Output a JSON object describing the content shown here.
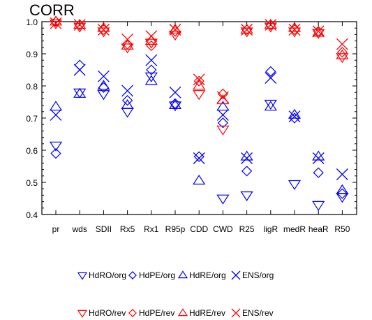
{
  "chart_data": {
    "type": "scatter",
    "title": "CORR",
    "ylim": [
      0.4,
      1.0
    ],
    "yticks": [
      "0.4",
      "0.5",
      "0.6",
      "0.7",
      "0.8",
      "0.9",
      "1.0"
    ],
    "categories": [
      "pr",
      "wds",
      "SDII",
      "Rx5",
      "Rx1",
      "R95p",
      "CDD",
      "CWD",
      "R25",
      "ligR",
      "medR",
      "heaR",
      "R50"
    ],
    "grid": false,
    "legend_position": "bottom",
    "series": [
      {
        "name": "HdRO/org",
        "marker": "triangle-down",
        "color": "#0000ff",
        "values": [
          0.615,
          0.78,
          0.775,
          0.72,
          0.83,
          0.74,
          null,
          0.45,
          0.46,
          0.745,
          0.495,
          0.43,
          0.455
        ]
      },
      {
        "name": "HdPE/org",
        "marker": "diamond",
        "color": "#0000ff",
        "values": [
          0.59,
          0.865,
          0.795,
          0.755,
          0.85,
          0.745,
          0.58,
          0.685,
          0.535,
          0.845,
          0.7,
          0.53,
          0.465
        ]
      },
      {
        "name": "HdRE/org",
        "marker": "triangle-up",
        "color": "#0000ff",
        "values": [
          0.735,
          0.775,
          0.8,
          0.74,
          0.815,
          0.74,
          0.505,
          0.735,
          0.58,
          0.735,
          0.71,
          0.58,
          0.475
        ]
      },
      {
        "name": "ENS/org",
        "marker": "x",
        "color": "#0000ff",
        "values": [
          0.71,
          0.85,
          0.83,
          0.785,
          0.88,
          0.78,
          0.575,
          0.71,
          0.575,
          0.825,
          0.705,
          0.575,
          0.525
        ]
      },
      {
        "name": "HdRO/rev",
        "marker": "triangle-down",
        "color": "#ff0000",
        "values": [
          0.995,
          0.985,
          0.97,
          0.92,
          0.935,
          0.96,
          0.775,
          0.665,
          0.97,
          0.985,
          0.97,
          0.965,
          0.89
        ]
      },
      {
        "name": "HdPE/rev",
        "marker": "diamond",
        "color": "#ff0000",
        "values": [
          1.0,
          0.99,
          0.975,
          0.93,
          0.925,
          0.97,
          0.815,
          0.775,
          0.975,
          0.99,
          0.975,
          0.97,
          0.905
        ]
      },
      {
        "name": "HdRE/rev",
        "marker": "triangle-up",
        "color": "#ff0000",
        "values": [
          1.0,
          0.99,
          0.98,
          0.925,
          0.94,
          0.975,
          0.8,
          0.755,
          0.975,
          0.99,
          0.98,
          0.965,
          0.895
        ]
      },
      {
        "name": "ENS/rev",
        "marker": "x",
        "color": "#ff0000",
        "values": [
          0.995,
          0.99,
          0.975,
          0.945,
          0.955,
          0.975,
          0.82,
          0.765,
          0.975,
          0.99,
          0.975,
          0.97,
          0.93
        ]
      }
    ]
  }
}
